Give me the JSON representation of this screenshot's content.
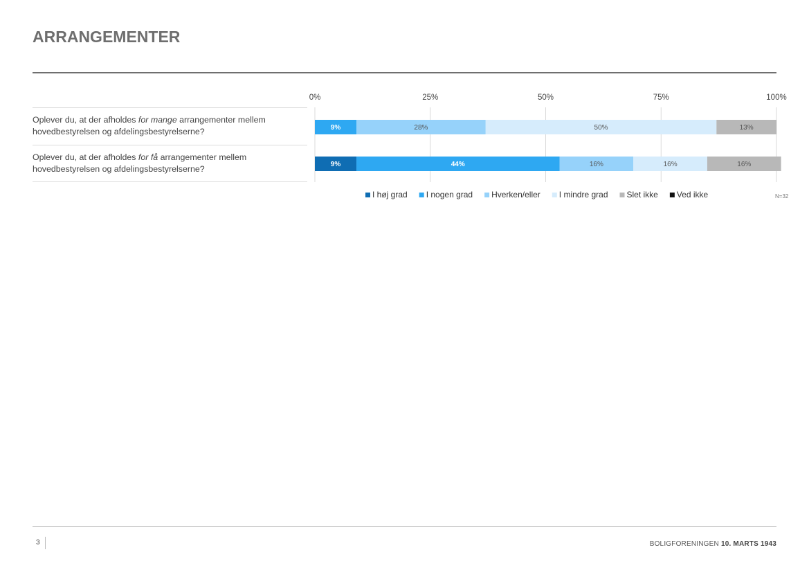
{
  "header": {
    "title": "ARRANGEMENTER"
  },
  "questions": [
    {
      "pre": "Oplever du, at der afholdes ",
      "em": "for mange",
      "post": " arrangementer mellem hovedbestyrelsen og afdelingsbestyrelserne?"
    },
    {
      "pre": "Oplever du, at der afholdes ",
      "em": "for få",
      "post": " arrangementer mellem hovedbestyrelsen og afdelingsbestyrelserne?"
    }
  ],
  "chart_data": {
    "type": "bar",
    "orientation": "horizontal-stacked-100",
    "x_ticks": [
      "0%",
      "25%",
      "50%",
      "75%",
      "100%"
    ],
    "xlim": [
      0,
      100
    ],
    "grid": true,
    "legend_position": "bottom",
    "categories": [
      "for mange",
      "for få"
    ],
    "series": [
      {
        "name": "I høj grad",
        "color": "#0f6db3",
        "values": [
          0,
          9
        ],
        "labels": [
          "",
          "9%"
        ]
      },
      {
        "name": "I nogen grad",
        "color": "#2ea8f2",
        "values": [
          9,
          44
        ],
        "labels": [
          "9%",
          "44%"
        ]
      },
      {
        "name": "Hverken/eller",
        "color": "#96d2fa",
        "values": [
          28,
          16
        ],
        "labels": [
          "28%",
          "16%"
        ]
      },
      {
        "name": "I mindre grad",
        "color": "#d6ecfc",
        "values": [
          50,
          16
        ],
        "labels": [
          "50%",
          "16%"
        ]
      },
      {
        "name": "Slet ikke",
        "color": "#b8b8b8",
        "values": [
          13,
          16
        ],
        "labels": [
          "13%",
          "16%"
        ]
      },
      {
        "name": "Ved ikke",
        "color": "#111111",
        "values": [
          0,
          0
        ],
        "labels": [
          "",
          ""
        ]
      }
    ],
    "note": "N=32"
  },
  "footer": {
    "page": "3",
    "org": "BOLIGFORENINGEN",
    "date": "10. MARTS 1943"
  }
}
